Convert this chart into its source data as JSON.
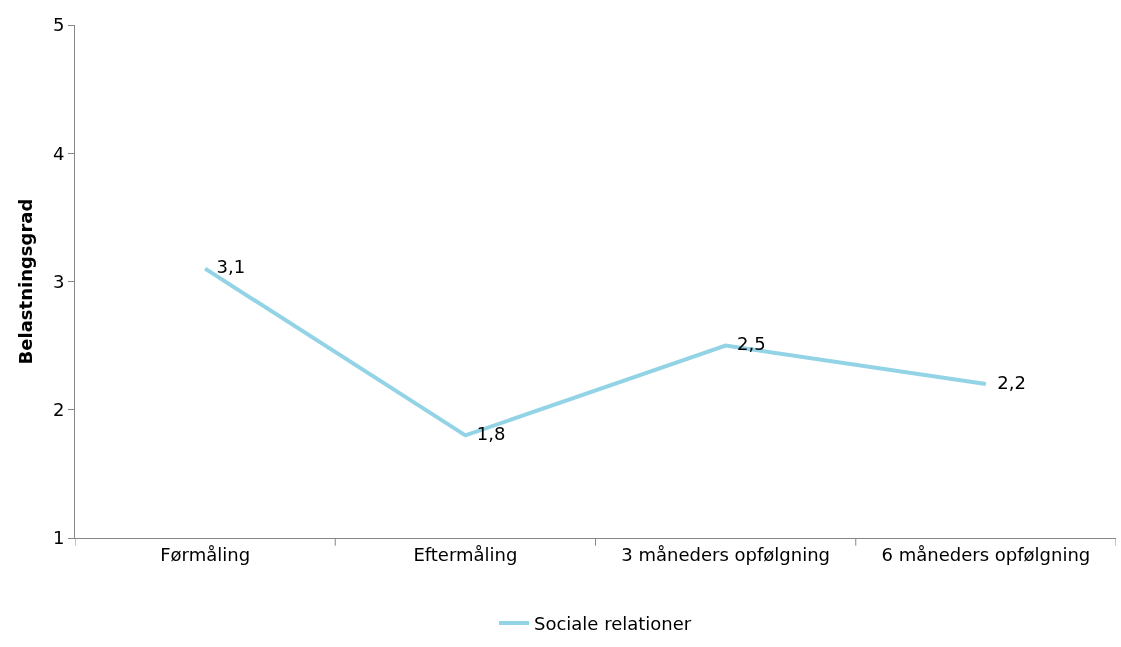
{
  "chart_data": {
    "type": "line",
    "ylabel": "Belastningsgrad",
    "categories": [
      "Førmåling",
      "Eftermåling",
      "3 måneders opfølgning",
      "6 måneders opfølgning"
    ],
    "series": [
      {
        "name": "Sociale relationer",
        "color": "#92d3e6",
        "values": [
          3.1,
          1.8,
          2.5,
          2.2
        ],
        "value_labels": [
          "3,1",
          "1,8",
          "2,5",
          "2,2"
        ]
      }
    ],
    "ylim": [
      1,
      5
    ],
    "yticks": [
      1,
      2,
      3,
      4,
      5
    ],
    "legend": "bottom",
    "marker": "none",
    "line_style": "solid"
  }
}
